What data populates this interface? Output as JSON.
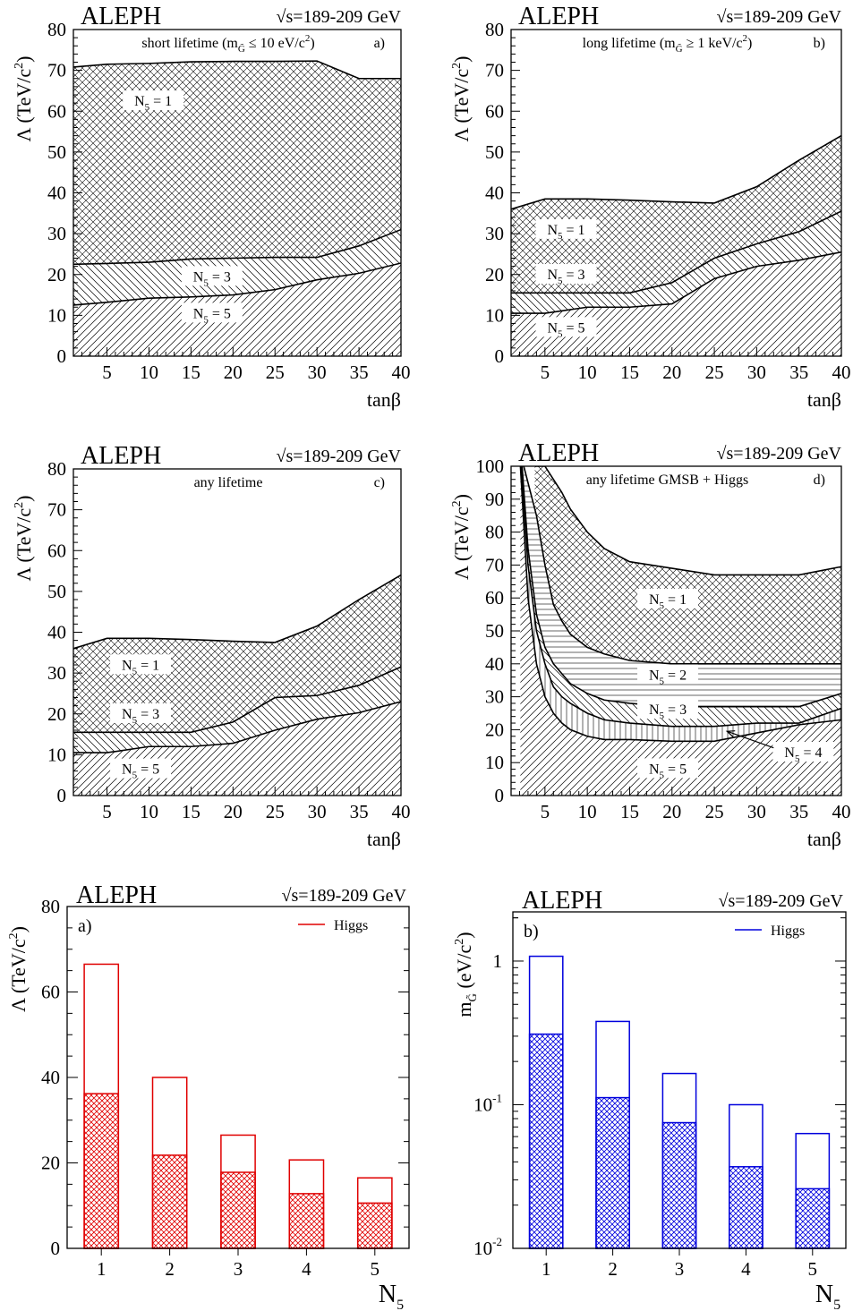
{
  "colors": {
    "panel_a": "#e00000",
    "panel_b": "#0000dd",
    "line": "#000000"
  },
  "chart_data": [
    {
      "type": "area",
      "id": "a",
      "experiment": "ALEPH",
      "energy": "√s=189-209 GeV",
      "subtitle": "short lifetime (m",
      "subtitle_sub": "G̃",
      "subtitle_rest": " ≤ 10 eV/c",
      "subtitle_sup": "2",
      "subtitle_end": ")",
      "panel_label": "a)",
      "ylabel": "Λ (TeV/c",
      "ylabel_sup": "2",
      "ylabel_end": ")",
      "xlabel": "tanβ",
      "xlim": [
        1,
        40
      ],
      "ylim": [
        0,
        80
      ],
      "xticks": [
        5,
        10,
        15,
        20,
        25,
        30,
        35,
        40
      ],
      "yticks": [
        0,
        10,
        20,
        30,
        40,
        50,
        60,
        70,
        80
      ],
      "series": [
        {
          "name": "N5 = 1",
          "label": "N",
          "label_sub": "5",
          "label_rest": " = 1",
          "label_at": [
            10.5,
            62
          ],
          "hatch": "cross",
          "x": [
            1,
            5,
            10,
            15,
            20,
            25,
            30,
            35,
            40
          ],
          "y": [
            70.8,
            71.5,
            71.7,
            72.1,
            72.2,
            72.2,
            72.3,
            68.0,
            68.0
          ]
        },
        {
          "name": "N5 = 3",
          "label": "N",
          "label_sub": "5",
          "label_rest": " = 3",
          "label_at": [
            17.5,
            19
          ],
          "hatch": "back",
          "x": [
            1,
            5,
            10,
            15,
            20,
            25,
            30,
            35,
            40
          ],
          "y": [
            22.5,
            22.7,
            23.0,
            23.8,
            24.0,
            24.2,
            24.2,
            27.0,
            31.0
          ]
        },
        {
          "name": "N5 = 5",
          "label": "N",
          "label_sub": "5",
          "label_rest": " = 5",
          "label_at": [
            17.5,
            10
          ],
          "hatch": "fwd",
          "x": [
            1,
            5,
            10,
            15,
            20,
            25,
            30,
            35,
            40
          ],
          "y": [
            12.5,
            13.2,
            14.2,
            14.5,
            15.0,
            16.3,
            18.7,
            20.3,
            22.8
          ]
        }
      ]
    },
    {
      "type": "area",
      "id": "b",
      "experiment": "ALEPH",
      "energy": "√s=189-209 GeV",
      "subtitle": "long lifetime (m",
      "subtitle_sub": "G̃",
      "subtitle_rest": " ≥ 1 keV/c",
      "subtitle_sup": "2",
      "subtitle_end": ")",
      "panel_label": "b)",
      "ylabel": "Λ (TeV/c",
      "ylabel_sup": "2",
      "ylabel_end": ")",
      "xlabel": "tanβ",
      "xlim": [
        1,
        40
      ],
      "ylim": [
        0,
        80
      ],
      "xticks": [
        5,
        10,
        15,
        20,
        25,
        30,
        35,
        40
      ],
      "yticks": [
        0,
        10,
        20,
        30,
        40,
        50,
        60,
        70,
        80
      ],
      "series": [
        {
          "name": "N5 = 1",
          "label": "N",
          "label_sub": "5",
          "label_rest": " = 1",
          "label_at": [
            7.5,
            30.5
          ],
          "hatch": "cross",
          "x": [
            1,
            5,
            10,
            15,
            20,
            25,
            30,
            35,
            40
          ],
          "y": [
            36.0,
            38.5,
            38.5,
            38.2,
            37.8,
            37.5,
            41.5,
            48.0,
            54.0
          ]
        },
        {
          "name": "N5 = 3",
          "label": "N",
          "label_sub": "5",
          "label_rest": " = 3",
          "label_at": [
            7.5,
            19.5
          ],
          "hatch": "back",
          "x": [
            1,
            5,
            10,
            15,
            20,
            25,
            30,
            35,
            40
          ],
          "y": [
            15.5,
            15.5,
            15.5,
            15.5,
            18.0,
            24.0,
            27.5,
            30.5,
            35.5
          ]
        },
        {
          "name": "N5 = 5",
          "label": "N",
          "label_sub": "5",
          "label_rest": " = 5",
          "label_at": [
            7.5,
            6.5
          ],
          "hatch": "fwd",
          "x": [
            1,
            5,
            10,
            15,
            20,
            25,
            30,
            35,
            40
          ],
          "y": [
            10.5,
            10.5,
            12.0,
            12.0,
            12.8,
            19.0,
            22.0,
            23.5,
            25.5
          ]
        }
      ]
    },
    {
      "type": "area",
      "id": "c",
      "experiment": "ALEPH",
      "energy": "√s=189-209 GeV",
      "subtitle": "any lifetime",
      "panel_label": "c)",
      "ylabel": "Λ (TeV/c",
      "ylabel_sup": "2",
      "ylabel_end": ")",
      "xlabel": "tanβ",
      "xlim": [
        1,
        40
      ],
      "ylim": [
        0,
        80
      ],
      "xticks": [
        5,
        10,
        15,
        20,
        25,
        30,
        35,
        40
      ],
      "yticks": [
        0,
        10,
        20,
        30,
        40,
        50,
        60,
        70,
        80
      ],
      "series": [
        {
          "name": "N5 = 1",
          "label": "N",
          "label_sub": "5",
          "label_rest": " = 1",
          "label_at": [
            9,
            31.5
          ],
          "hatch": "cross",
          "x": [
            1,
            5,
            10,
            15,
            20,
            25,
            30,
            35,
            40
          ],
          "y": [
            36.0,
            38.5,
            38.5,
            38.2,
            37.8,
            37.5,
            41.5,
            48.0,
            54.0
          ]
        },
        {
          "name": "N5 = 3",
          "label": "N",
          "label_sub": "5",
          "label_rest": " = 3",
          "label_at": [
            9,
            19.5
          ],
          "hatch": "back",
          "x": [
            1,
            5,
            10,
            15,
            20,
            25,
            30,
            35,
            40
          ],
          "y": [
            15.5,
            15.5,
            15.5,
            15.5,
            18.0,
            24.0,
            24.5,
            27.0,
            31.5
          ]
        },
        {
          "name": "N5 = 5",
          "label": "N",
          "label_sub": "5",
          "label_rest": " = 5",
          "label_at": [
            9,
            6.0
          ],
          "hatch": "fwd",
          "x": [
            1,
            5,
            10,
            15,
            20,
            25,
            30,
            35,
            40
          ],
          "y": [
            10.5,
            10.5,
            12.0,
            12.0,
            12.8,
            16.0,
            18.7,
            20.3,
            23.0
          ]
        }
      ]
    },
    {
      "type": "area",
      "id": "d",
      "experiment": "ALEPH",
      "energy": "√s=189-209 GeV",
      "subtitle": "any lifetime GMSB + Higgs",
      "panel_label": "d)",
      "ylabel": "Λ (TeV/c",
      "ylabel_sup": "2",
      "ylabel_end": ")",
      "xlabel": "tanβ",
      "xlim": [
        1,
        40
      ],
      "ylim": [
        0,
        100
      ],
      "xticks": [
        5,
        10,
        15,
        20,
        25,
        30,
        35,
        40
      ],
      "yticks": [
        0,
        10,
        20,
        30,
        40,
        50,
        60,
        70,
        80,
        90,
        100
      ],
      "series": [
        {
          "name": "N5 = 1",
          "label": "N",
          "label_sub": "5",
          "label_rest": " = 1",
          "label_at": [
            19.5,
            59
          ],
          "hatch": "cross",
          "x": [
            3.8,
            5,
            7,
            8,
            10,
            12,
            15,
            20,
            25,
            30,
            35,
            40
          ],
          "y": [
            100,
            100,
            92,
            87,
            80,
            75,
            71,
            69,
            67,
            67,
            67,
            69.5
          ]
        },
        {
          "name": "N5 = 2",
          "label": "N",
          "label_sub": "5",
          "label_rest": " = 2",
          "label_at": [
            19.5,
            36
          ],
          "hatch": "horiz",
          "x": [
            2.5,
            4,
            5,
            6,
            7,
            8,
            10,
            12,
            15,
            20,
            25,
            30,
            35,
            40
          ],
          "y": [
            100,
            85,
            70,
            58,
            53,
            49,
            45,
            43,
            41,
            40,
            40,
            40,
            40,
            40
          ]
        },
        {
          "name": "N5 = 3",
          "label": "N",
          "label_sub": "5",
          "label_rest": " = 3",
          "label_at": [
            19.5,
            25.5
          ],
          "hatch": "back",
          "x": [
            2.3,
            3,
            4,
            5,
            6,
            7,
            8,
            10,
            12,
            15,
            20,
            25,
            30,
            35,
            40
          ],
          "y": [
            100,
            75,
            55,
            45,
            40,
            37,
            34,
            31,
            29,
            28,
            27,
            27,
            27,
            27,
            31
          ]
        },
        {
          "name": "N5 = 4",
          "label": "N",
          "label_sub": "5",
          "label_rest": " = 4",
          "label_at": [
            35.5,
            12.5
          ],
          "hatch": "vert",
          "x": [
            2.2,
            3,
            4,
            5,
            6,
            7,
            8,
            10,
            12,
            15,
            20,
            25,
            30,
            35,
            40
          ],
          "y": [
            100,
            70,
            50,
            40,
            33,
            30,
            28,
            25,
            23,
            22,
            21,
            21,
            22,
            22,
            26.5
          ]
        },
        {
          "name": "N5 = 5",
          "label": "N",
          "label_sub": "5",
          "label_rest": " = 5",
          "label_at": [
            19.5,
            7.5
          ],
          "hatch": "fwd",
          "x": [
            2.1,
            3,
            4,
            5,
            6,
            7,
            8,
            10,
            12,
            15,
            20,
            25,
            30,
            35,
            40
          ],
          "y": [
            100,
            60,
            40,
            30,
            25,
            22,
            20,
            18,
            17,
            17,
            16.5,
            16.5,
            19,
            21.5,
            23
          ]
        }
      ],
      "arrow": {
        "from": [
          32.0,
          14.5
        ],
        "to": [
          26.5,
          19.5
        ]
      }
    },
    {
      "type": "bar",
      "id": "e",
      "experiment": "ALEPH",
      "energy": "√s=189-209 GeV",
      "panel_label": "a)",
      "legend": "Higgs",
      "ylabel": "Λ (TeV/c",
      "ylabel_sup": "2",
      "ylabel_end": ")",
      "xlabel": "N",
      "xlabel_sub": "5",
      "log": false,
      "ylim": [
        0,
        80
      ],
      "yticks": [
        0,
        20,
        40,
        60,
        80
      ],
      "categories": [
        "1",
        "2",
        "3",
        "4",
        "5"
      ],
      "series": [
        {
          "name": "Higgs",
          "values": [
            66.5,
            40.0,
            26.5,
            20.7,
            16.5
          ],
          "style": "open"
        },
        {
          "values": [
            36.2,
            21.8,
            17.8,
            12.8,
            10.6
          ],
          "style": "hatched"
        }
      ],
      "color": "#e00000"
    },
    {
      "type": "bar",
      "id": "f",
      "experiment": "ALEPH",
      "energy": "√s=189-209 GeV",
      "panel_label": "b)",
      "legend": "Higgs",
      "ylabel": "m",
      "ylabel_sub": "G̃",
      "ylabel_rest": " (eV/c",
      "ylabel_sup": "2",
      "ylabel_end": ")",
      "xlabel": "N",
      "xlabel_sub": "5",
      "log": true,
      "ylim": [
        0.01,
        2.2
      ],
      "ytick_labels": [
        {
          "value": 1,
          "base": "1",
          "exp": ""
        },
        {
          "value": 0.1,
          "base": "10",
          "exp": "-1"
        },
        {
          "value": 0.01,
          "base": "10",
          "exp": "-2"
        }
      ],
      "categories": [
        "1",
        "2",
        "3",
        "4",
        "5"
      ],
      "series": [
        {
          "name": "Higgs",
          "values": [
            1.08,
            0.38,
            0.165,
            0.1,
            0.063
          ],
          "style": "open"
        },
        {
          "values": [
            0.31,
            0.112,
            0.075,
            0.037,
            0.026
          ],
          "style": "hatched"
        }
      ],
      "color": "#0000dd"
    }
  ]
}
